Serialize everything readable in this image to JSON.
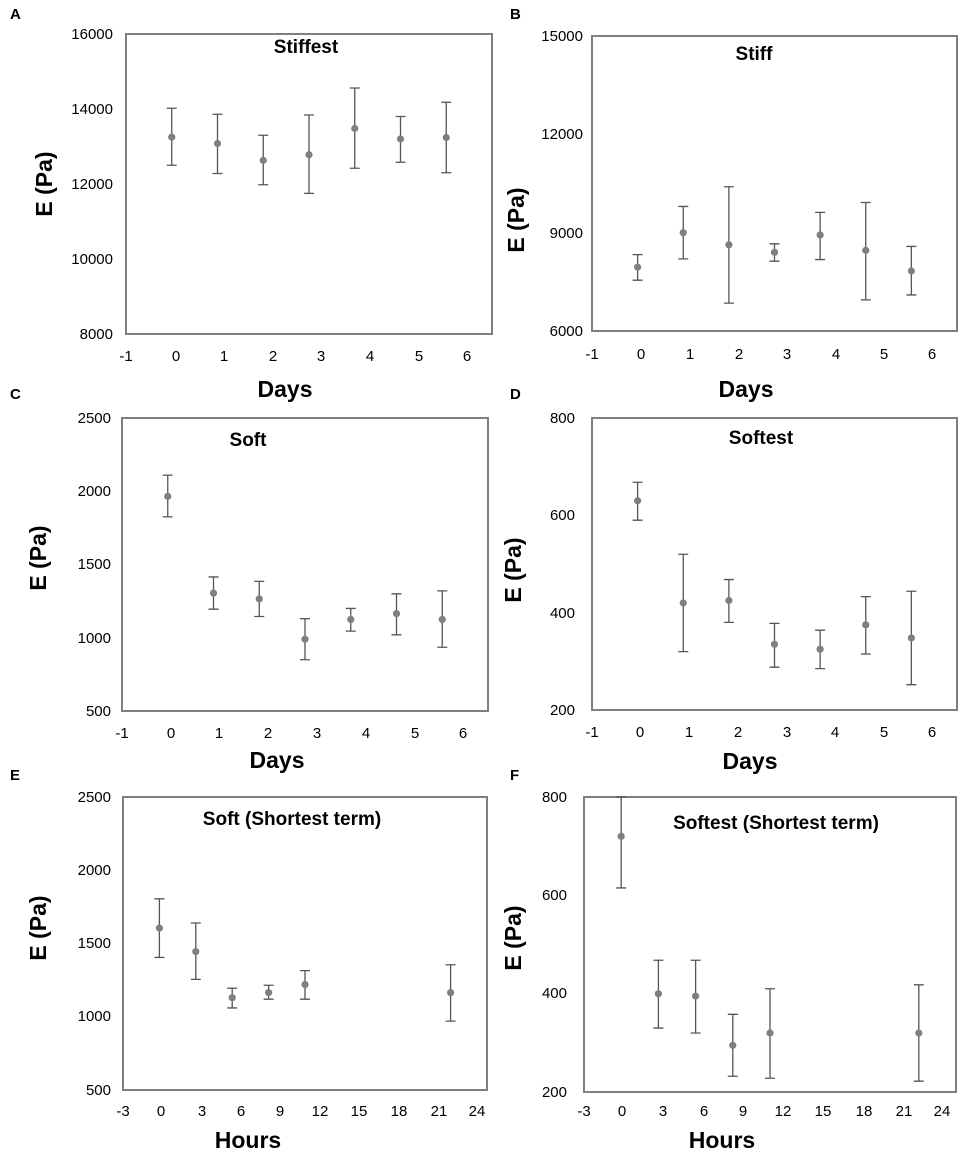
{
  "chart_data": [
    {
      "type": "scatter",
      "panel_label": "A",
      "title": "Stiffest",
      "xlabel": "Days",
      "ylabel": "E (Pa)",
      "xlim": [
        -1,
        7
      ],
      "ylim": [
        8000,
        16000
      ],
      "xticks": [
        "-1",
        "0",
        "1",
        "2",
        "3",
        "4",
        "5",
        "6"
      ],
      "yticks": [
        "16000",
        "14000",
        "12000",
        "10000",
        "8000"
      ],
      "series": [
        {
          "name": "Stiffest",
          "x": [
            0,
            1,
            2,
            3,
            4,
            5,
            6
          ],
          "y": [
            13250,
            13080,
            12630,
            12780,
            13480,
            13200,
            13240
          ],
          "err_low": [
            12500,
            12280,
            11980,
            11750,
            12420,
            12580,
            12300
          ],
          "err_high": [
            14020,
            13860,
            13300,
            13840,
            14560,
            13800,
            14180
          ]
        }
      ]
    },
    {
      "type": "scatter",
      "panel_label": "B",
      "title": "Stiff",
      "xlabel": "Days",
      "ylabel": "E (Pa)",
      "xlim": [
        -1,
        7
      ],
      "ylim": [
        6000,
        15000
      ],
      "xticks": [
        "-1",
        "0",
        "1",
        "2",
        "3",
        "4",
        "5",
        "6"
      ],
      "yticks": [
        "15000",
        "12000",
        "9000",
        "6000"
      ],
      "series": [
        {
          "name": "Stiff",
          "x": [
            0,
            1,
            2,
            3,
            4,
            5,
            6
          ],
          "y": [
            7950,
            9000,
            8630,
            8400,
            8930,
            8460,
            7830
          ],
          "err_low": [
            7550,
            8200,
            6850,
            8130,
            8180,
            6950,
            7100
          ],
          "err_high": [
            8330,
            9800,
            10400,
            8660,
            9620,
            9920,
            8580
          ]
        }
      ]
    },
    {
      "type": "scatter",
      "panel_label": "C",
      "title": "Soft",
      "xlabel": "Days",
      "ylabel": "E (Pa)",
      "xlim": [
        -1,
        7
      ],
      "ylim": [
        500,
        2500
      ],
      "xticks": [
        "-1",
        "0",
        "1",
        "2",
        "3",
        "4",
        "5",
        "6"
      ],
      "yticks": [
        "2500",
        "2000",
        "1500",
        "1000",
        "500"
      ],
      "series": [
        {
          "name": "Soft",
          "x": [
            0,
            1,
            2,
            3,
            4,
            5,
            6
          ],
          "y": [
            1965,
            1305,
            1265,
            990,
            1125,
            1165,
            1125
          ],
          "err_low": [
            1825,
            1195,
            1145,
            850,
            1045,
            1020,
            935
          ],
          "err_high": [
            2110,
            1415,
            1385,
            1130,
            1200,
            1300,
            1320
          ]
        }
      ]
    },
    {
      "type": "scatter",
      "panel_label": "D",
      "title": "Softest",
      "xlabel": "Days",
      "ylabel": "E (Pa)",
      "xlim": [
        -1,
        7
      ],
      "ylim": [
        200,
        800
      ],
      "xticks": [
        "-1",
        "0",
        "1",
        "2",
        "3",
        "4",
        "5",
        "6"
      ],
      "yticks": [
        "800",
        "600",
        "400",
        "200"
      ],
      "series": [
        {
          "name": "Softest",
          "x": [
            0,
            1,
            2,
            3,
            4,
            5,
            6
          ],
          "y": [
            630,
            420,
            425,
            335,
            325,
            375,
            348
          ],
          "err_low": [
            590,
            320,
            380,
            288,
            285,
            315,
            252
          ],
          "err_high": [
            668,
            520,
            468,
            378,
            364,
            433,
            444
          ]
        }
      ]
    },
    {
      "type": "scatter",
      "panel_label": "E",
      "title": "Soft (Shortest term)",
      "xlabel": "Hours",
      "ylabel": "E (Pa)",
      "xlim": [
        -3,
        27
      ],
      "ylim": [
        500,
        2500
      ],
      "xticks": [
        "-3",
        "0",
        "3",
        "6",
        "9",
        "12",
        "15",
        "18",
        "21",
        "24"
      ],
      "yticks": [
        "2500",
        "2000",
        "1500",
        "1000",
        "500"
      ],
      "series": [
        {
          "name": "Soft (Shortest term)",
          "x": [
            0,
            3,
            6,
            9,
            12,
            24
          ],
          "y": [
            1605,
            1445,
            1130,
            1165,
            1220,
            1165
          ],
          "err_low": [
            1405,
            1255,
            1060,
            1120,
            1120,
            970
          ],
          "err_high": [
            1805,
            1640,
            1195,
            1215,
            1315,
            1355
          ]
        }
      ]
    },
    {
      "type": "scatter",
      "panel_label": "F",
      "title": "Softest (Shortest term)",
      "xlabel": "Hours",
      "ylabel": "E (Pa)",
      "xlim": [
        -3,
        27
      ],
      "ylim": [
        200,
        800
      ],
      "xticks": [
        "-3",
        "0",
        "3",
        "6",
        "9",
        "12",
        "15",
        "18",
        "21",
        "24"
      ],
      "yticks": [
        "800",
        "600",
        "400",
        "200"
      ],
      "series": [
        {
          "name": "Softest (Shortest term)",
          "x": [
            0,
            3,
            6,
            9,
            12,
            24
          ],
          "y": [
            720,
            400,
            395,
            295,
            320,
            320
          ],
          "err_low": [
            615,
            330,
            320,
            232,
            228,
            222
          ],
          "err_high": [
            800,
            468,
            468,
            358,
            410,
            418
          ]
        }
      ]
    }
  ],
  "colors": {
    "point": "#7f7f7f",
    "errorbar": "#555555",
    "frame": "#7f7f7f"
  }
}
